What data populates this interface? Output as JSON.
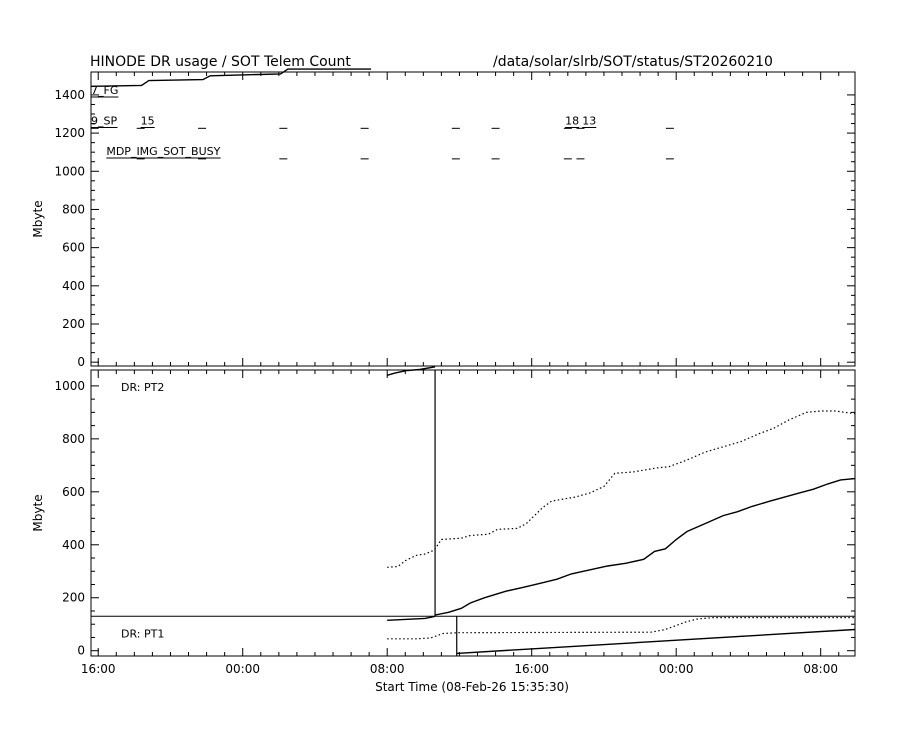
{
  "header": {
    "title": "HINODE DR usage / SOT Telem Count",
    "path": "/data/solar/slrb/SOT/status/ST20260210"
  },
  "chart_data": [
    {
      "type": "line",
      "panel": "top",
      "ylabel": "Mbyte",
      "ylim": [
        -20,
        1520
      ],
      "yticks": [
        "0",
        "200",
        "400",
        "600",
        "800",
        "1000",
        "1200",
        "1400"
      ],
      "xlim": [
        0,
        42.3
      ],
      "series": [
        {
          "style": "solid",
          "x": [
            0,
            2.8,
            3.2,
            6.2,
            6.6,
            10.5,
            10.9,
            15.5
          ],
          "y": [
            1445,
            1450,
            1475,
            1480,
            1500,
            1510,
            1535,
            1535
          ]
        }
      ],
      "labels": [
        {
          "text": "7_FG",
          "x": 0,
          "y": 1405
        },
        {
          "text": "9_SP",
          "x": 0,
          "y": 1245
        },
        {
          "text": "15",
          "x": 2.75,
          "y": 1245
        },
        {
          "text": "18",
          "x": 26.25,
          "y": 1245
        },
        {
          "text": "13",
          "x": 27.2,
          "y": 1245
        },
        {
          "text": "MDP_IMG_SOT_BUSY",
          "x": 0.85,
          "y": 1085
        }
      ],
      "sp_marks": [
        0.2,
        2.75,
        6.15,
        10.65,
        15.15,
        20.2,
        22.4,
        26.4,
        27.1,
        32.05
      ],
      "busy_marks": [
        2.75,
        6.15,
        10.65,
        15.15,
        20.2,
        22.4,
        26.4,
        27.1,
        32.05
      ]
    },
    {
      "type": "line",
      "panel": "bottom",
      "ylabel": "Mbyte",
      "ylim": [
        -20,
        1060
      ],
      "yticks": [
        "0",
        "200",
        "400",
        "600",
        "800",
        "1000"
      ],
      "xlabel": "Start Time (08-Feb-26 15:35:30)",
      "xticks": [
        {
          "label": "16:00",
          "x": 0.4
        },
        {
          "label": "00:00",
          "x": 8.4
        },
        {
          "label": "08:00",
          "x": 16.4
        },
        {
          "label": "16:00",
          "x": 24.4
        },
        {
          "label": "00:00",
          "x": 32.4
        },
        {
          "label": "08:00",
          "x": 40.4
        }
      ],
      "series": [
        {
          "name": "DR: PT2",
          "style": "solid",
          "x": [
            16.4,
            16.8,
            17.5,
            18.2,
            19.05
          ],
          "y": [
            1040,
            1048,
            1058,
            1062,
            1072
          ]
        },
        {
          "name": "DR: PT2",
          "style": "dotted",
          "x": [
            16.4,
            17.0,
            17.4,
            18.0,
            18.5,
            19.0,
            19.4,
            20.5,
            21.0,
            22.0,
            22.5,
            23.6,
            24.1,
            25.0,
            25.5,
            26.8,
            27.6,
            28.4,
            29.0,
            30.0,
            31.3,
            32.0,
            33.0,
            34.0,
            35.0,
            36.0,
            37.0,
            37.8,
            38.6,
            39.6,
            40.4,
            41.2,
            42.3
          ],
          "y": [
            315,
            318,
            340,
            360,
            365,
            380,
            420,
            425,
            435,
            440,
            458,
            462,
            480,
            540,
            565,
            580,
            595,
            620,
            670,
            675,
            690,
            695,
            720,
            750,
            770,
            790,
            820,
            840,
            870,
            900,
            905,
            905,
            895
          ]
        },
        {
          "name": "DR: PT2",
          "style": "solid",
          "x": [
            19.05,
            19.8,
            20.5,
            21.0,
            21.8,
            23.0,
            24.0,
            24.9,
            25.8,
            26.6,
            27.6,
            28.6,
            29.6,
            30.6,
            31.2,
            31.8,
            32.4,
            33.0,
            34.0,
            35.0,
            35.8,
            36.6,
            37.6,
            38.4,
            39.2,
            40.0,
            40.8,
            41.5,
            42.3
          ],
          "y": [
            135,
            145,
            160,
            180,
            200,
            225,
            240,
            255,
            270,
            290,
            305,
            320,
            330,
            345,
            375,
            385,
            420,
            450,
            480,
            510,
            525,
            545,
            565,
            580,
            595,
            610,
            630,
            645,
            650
          ]
        },
        {
          "name": "DR: PT1",
          "style": "solid",
          "x": [
            16.4,
            18.5,
            19.05
          ],
          "y": [
            115,
            122,
            130
          ]
        },
        {
          "name": "DR: PT1",
          "style": "dotted",
          "x": [
            16.4,
            18.0,
            18.8,
            19.5,
            20.3,
            31.0,
            31.8,
            32.4,
            33.0,
            33.6,
            34.5,
            42.3
          ],
          "y": [
            45,
            45,
            48,
            65,
            68,
            70,
            80,
            95,
            110,
            120,
            125,
            125
          ]
        },
        {
          "name": "DR: PT1",
          "style": "solid",
          "x": [
            20.25,
            42.3
          ],
          "y": [
            -10,
            80
          ]
        }
      ],
      "legend": [
        "DR: PT2",
        "DR: PT1"
      ],
      "annotations": [
        {
          "type": "vline",
          "x": 19.05,
          "y0": 130,
          "y1": 1080
        },
        {
          "type": "vline",
          "x": 20.25,
          "y0": -20,
          "y1": 130
        },
        {
          "type": "hline",
          "y": 130
        }
      ]
    }
  ]
}
